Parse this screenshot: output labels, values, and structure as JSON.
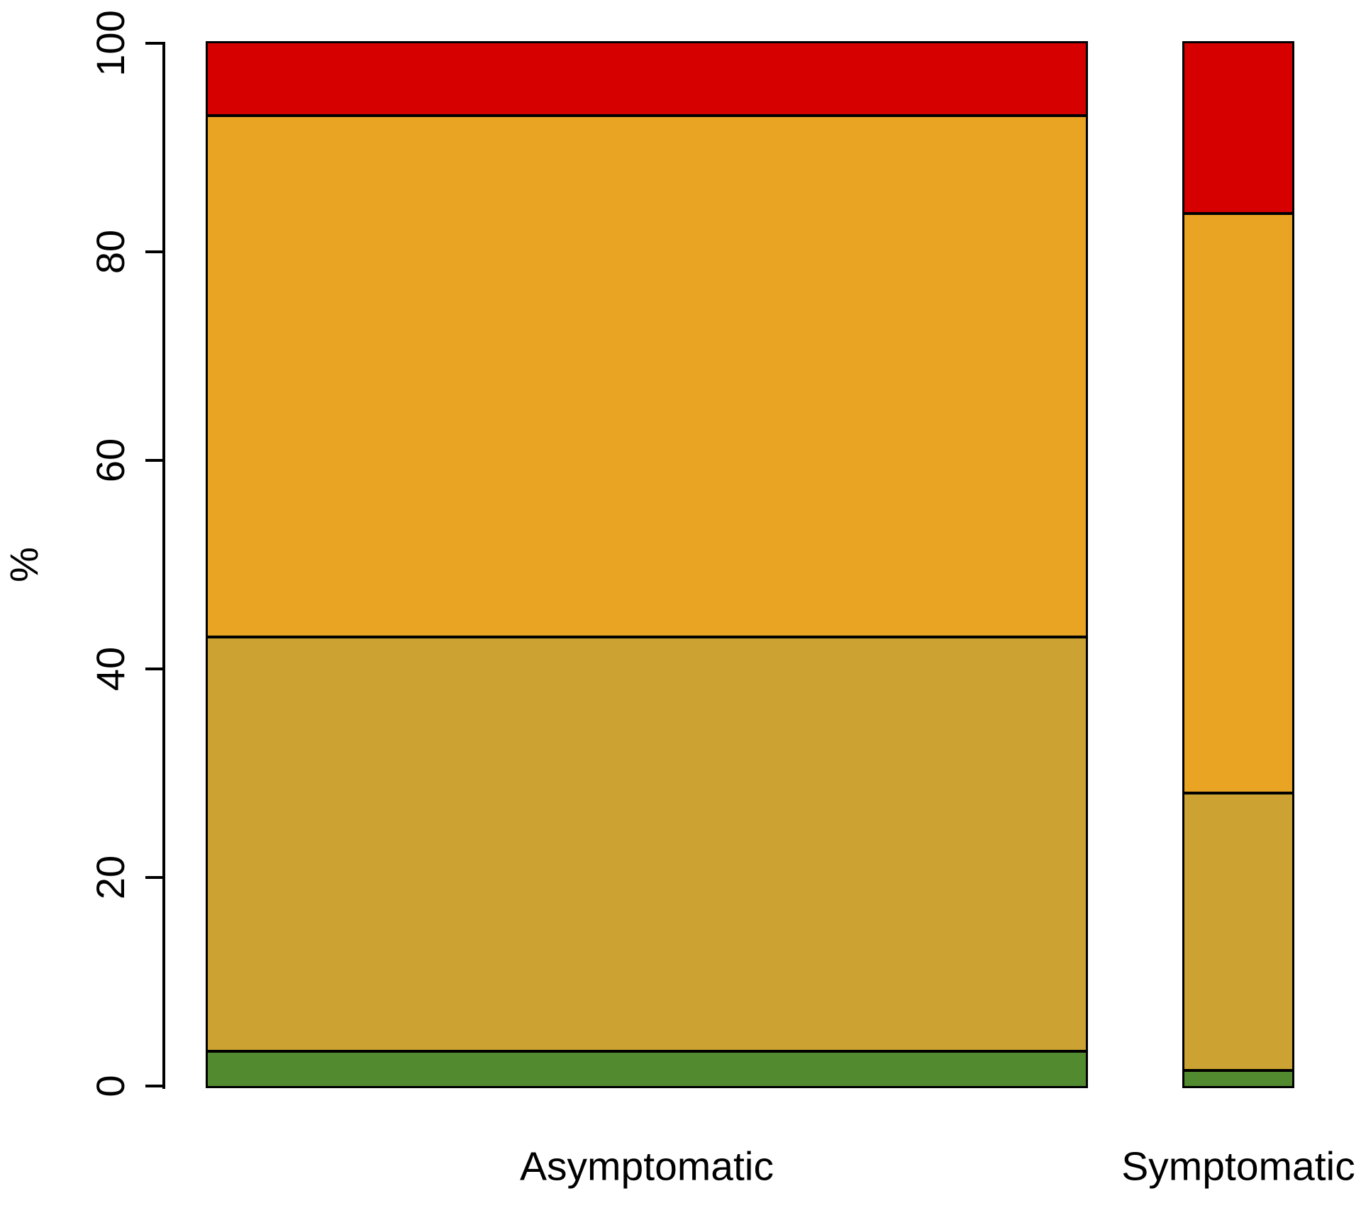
{
  "chart_data": {
    "type": "bar",
    "subtype": "stacked-percentage-spineplot",
    "title": "",
    "xlabel": "",
    "ylabel": "%",
    "ylim": [
      0,
      100
    ],
    "yticks": [
      0,
      20,
      40,
      60,
      80,
      100
    ],
    "grid": false,
    "legend_position": "none",
    "bar_border_color": "#000000",
    "categories": [
      "Asymptomatic",
      "Symptomatic"
    ],
    "bar_width_fractions": [
      0.891,
      0.109
    ],
    "series": [
      {
        "name": "green-bottom-segment",
        "color": "#528A30",
        "values": [
          3.5,
          1.6
        ]
      },
      {
        "name": "dark-khaki-segment",
        "color": "#CCA332",
        "values": [
          39.7,
          26.6
        ]
      },
      {
        "name": "orange-segment",
        "color": "#E9A424",
        "values": [
          50.0,
          55.6
        ]
      },
      {
        "name": "red-top-segment",
        "color": "#D60000",
        "values": [
          6.8,
          16.2
        ]
      }
    ]
  }
}
